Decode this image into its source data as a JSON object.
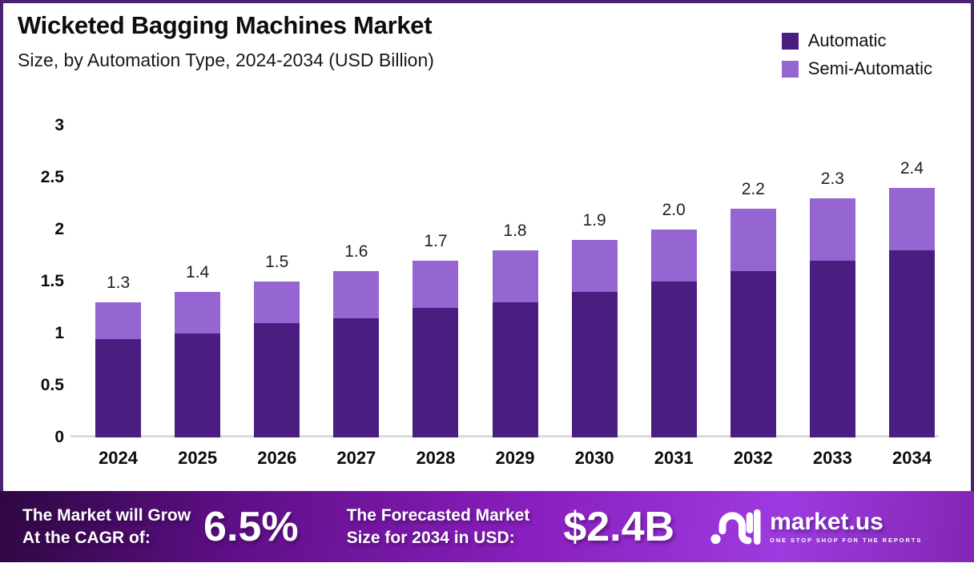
{
  "header": {
    "title": "Wicketed Bagging Machines Market",
    "subtitle": "Size, by Automation Type, 2024-2034 (USD Billion)"
  },
  "legend": [
    {
      "label": "Automatic",
      "color": "#4A1E80"
    },
    {
      "label": "Semi-Automatic",
      "color": "#9565D2"
    }
  ],
  "chart_data": {
    "type": "bar",
    "stacked": true,
    "title": "Wicketed Bagging Machines Market Size, by Automation Type, 2024-2034 (USD Billion)",
    "categories": [
      "2024",
      "2025",
      "2026",
      "2027",
      "2028",
      "2029",
      "2030",
      "2031",
      "2032",
      "2033",
      "2034"
    ],
    "series": [
      {
        "name": "Automatic",
        "color": "#4A1E80",
        "values": [
          0.95,
          1.0,
          1.1,
          1.15,
          1.25,
          1.3,
          1.4,
          1.5,
          1.6,
          1.7,
          1.8
        ]
      },
      {
        "name": "Semi-Automatic",
        "color": "#9565D2",
        "values": [
          0.35,
          0.4,
          0.4,
          0.45,
          0.45,
          0.5,
          0.5,
          0.5,
          0.6,
          0.6,
          0.6
        ]
      }
    ],
    "total_labels": [
      "1.3",
      "1.4",
      "1.5",
      "1.6",
      "1.7",
      "1.8",
      "1.9",
      "2.0",
      "2.2",
      "2.3",
      "2.4"
    ],
    "xlabel": "",
    "ylabel": "",
    "ylim": [
      0,
      3
    ],
    "yticks": [
      "0",
      "0.5",
      "1",
      "1.5",
      "2",
      "2.5",
      "3"
    ],
    "grid": false,
    "legend_position": "top-right"
  },
  "footer": {
    "cagr_line1": "The Market will Grow",
    "cagr_line2": "At the CAGR of:",
    "cagr_value": "6.5%",
    "forecast_line1": "The Forecasted Market",
    "forecast_line2": "Size for 2034 in USD:",
    "forecast_value": "$2.4B",
    "brand_name": "market.us",
    "brand_tagline": "ONE STOP SHOP FOR THE REPORTS"
  },
  "colors": {
    "border": "#4A2173",
    "axis_line": "#DADADA",
    "bar_automatic": "#4A1E80",
    "bar_semi_automatic": "#9565D2",
    "footer_gradient": [
      "#2E0741",
      "#5E0F86",
      "#8A1FBE",
      "#9D3BE0",
      "#8226B4"
    ],
    "text_dark": "#0d0d0d",
    "text_light": "#ffffff"
  }
}
